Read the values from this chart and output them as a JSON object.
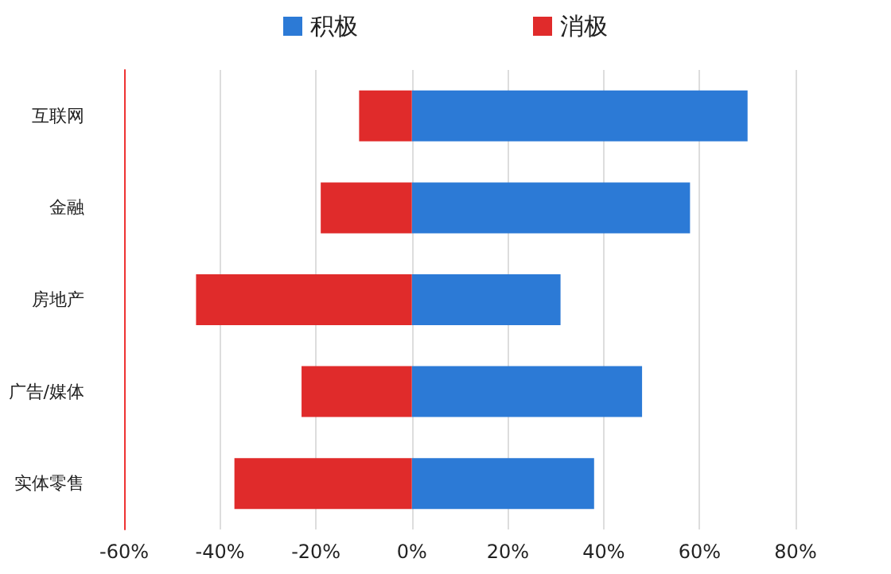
{
  "chart_data": {
    "type": "bar",
    "orientation": "horizontal",
    "stacked": true,
    "categories": [
      "互联网",
      "金融",
      "房地产",
      "广告/媒体",
      "实体零售"
    ],
    "series": [
      {
        "name": "积极",
        "color": "#2c7ad6",
        "values": [
          70,
          58,
          31,
          48,
          38
        ]
      },
      {
        "name": "消极",
        "color": "#e02b2b",
        "values": [
          -11,
          -19,
          -45,
          -23,
          -37
        ]
      }
    ],
    "xlim": [
      -60,
      80
    ],
    "xticks": [
      {
        "value": -60,
        "label": "-60%"
      },
      {
        "value": -40,
        "label": "-40%"
      },
      {
        "value": -20,
        "label": "-20%"
      },
      {
        "value": 0,
        "label": "0%"
      },
      {
        "value": 20,
        "label": "20%"
      },
      {
        "value": 40,
        "label": "40%"
      },
      {
        "value": 60,
        "label": "60%"
      },
      {
        "value": 80,
        "label": "80%"
      }
    ],
    "grid": "x",
    "legend": "top"
  }
}
